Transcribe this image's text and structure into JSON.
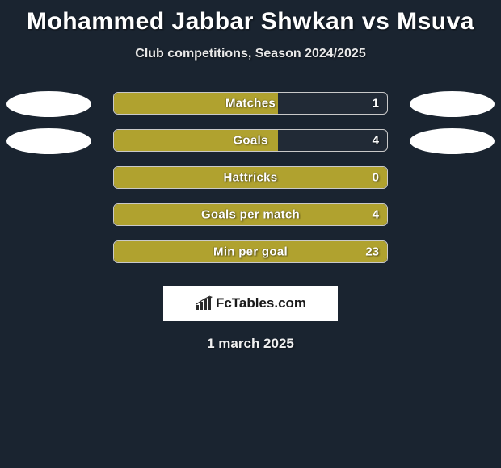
{
  "background_color": "#1a2430",
  "title": "Mohammed Jabbar Shwkan vs Msuva",
  "title_color": "#ffffff",
  "title_fontsize": 30,
  "subtitle": "Club competitions, Season 2024/2025",
  "subtitle_color": "#e8e8e8",
  "subtitle_fontsize": 16,
  "avatars": {
    "left_rows": [
      0,
      1
    ],
    "right_rows": [
      0,
      1
    ],
    "avatar_color": "#ffffff"
  },
  "bar_style": {
    "track_border_color": "#c9c9c9",
    "track_bg": "rgba(255,255,255,0.03)",
    "fill_color": "#b0a22f",
    "label_color": "#ffffff",
    "value_color": "#ffffff",
    "label_fontsize": 15
  },
  "stats": [
    {
      "label": "Matches",
      "value": "1",
      "fill_pct": 60
    },
    {
      "label": "Goals",
      "value": "4",
      "fill_pct": 60
    },
    {
      "label": "Hattricks",
      "value": "0",
      "fill_pct": 100
    },
    {
      "label": "Goals per match",
      "value": "4",
      "fill_pct": 100
    },
    {
      "label": "Min per goal",
      "value": "23",
      "fill_pct": 100
    }
  ],
  "brand": {
    "text": "FcTables.com",
    "bg": "#ffffff",
    "text_color": "#1a1a1a",
    "icon_color": "#2a2a2a"
  },
  "date": "1 march 2025",
  "date_color": "#f0f0f0"
}
